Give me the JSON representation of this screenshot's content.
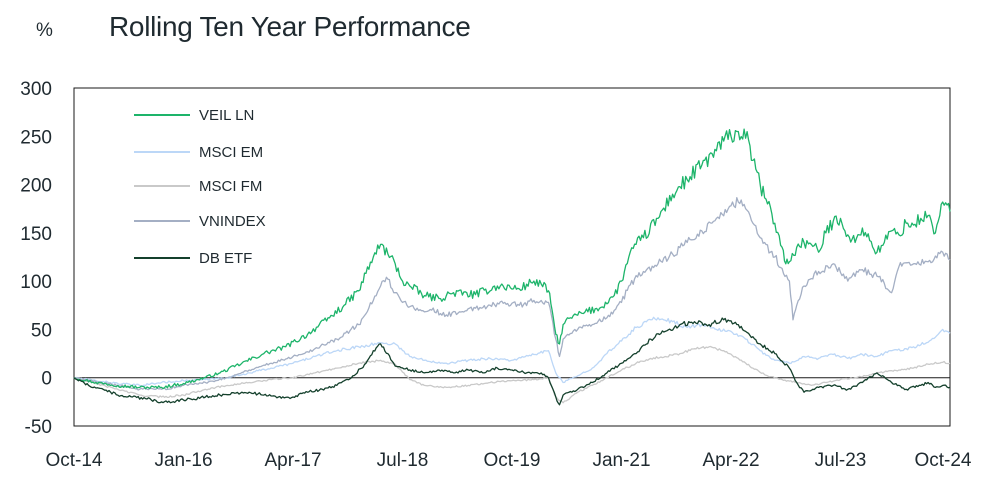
{
  "chart_data": {
    "type": "line",
    "title": "Rolling Ten Year Performance",
    "ylabel": "%",
    "xlabel": "",
    "ylim": [
      -50,
      300
    ],
    "yticks": [
      300,
      250,
      200,
      150,
      100,
      50,
      0,
      -50
    ],
    "xlim": [
      0,
      120
    ],
    "xtick_labels": [
      "Oct-14",
      "Jan-16",
      "Apr-17",
      "Jul-18",
      "Oct-19",
      "Jan-21",
      "Apr-22",
      "Jul-23",
      "Oct-24"
    ],
    "xtick_positions": [
      0,
      15,
      30,
      45,
      60,
      75,
      90,
      105,
      120
    ],
    "x_unit": "months since Oct-14",
    "legend_position": "top-left",
    "series": [
      {
        "name": "VEIL LN",
        "color": "#1db46a",
        "points": [
          [
            0,
            0
          ],
          [
            3,
            -5
          ],
          [
            6,
            -8
          ],
          [
            9,
            -10
          ],
          [
            12,
            -10
          ],
          [
            15,
            -6
          ],
          [
            17,
            -2
          ],
          [
            20,
            5
          ],
          [
            23,
            15
          ],
          [
            26,
            25
          ],
          [
            29,
            32
          ],
          [
            32,
            45
          ],
          [
            35,
            62
          ],
          [
            37,
            75
          ],
          [
            39,
            90
          ],
          [
            40,
            108
          ],
          [
            41,
            125
          ],
          [
            42,
            138
          ],
          [
            43,
            128
          ],
          [
            44,
            118
          ],
          [
            45,
            100
          ],
          [
            46,
            95
          ],
          [
            48,
            85
          ],
          [
            50,
            82
          ],
          [
            52,
            88
          ],
          [
            55,
            86
          ],
          [
            58,
            95
          ],
          [
            61,
            92
          ],
          [
            63,
            100
          ],
          [
            64,
            97
          ],
          [
            65,
            90
          ],
          [
            65.5,
            70
          ],
          [
            66,
            45
          ],
          [
            66.5,
            35
          ],
          [
            67,
            55
          ],
          [
            68,
            62
          ],
          [
            70,
            68
          ],
          [
            72,
            72
          ],
          [
            74,
            85
          ],
          [
            75,
            100
          ],
          [
            76,
            125
          ],
          [
            77,
            138
          ],
          [
            78,
            145
          ],
          [
            80,
            165
          ],
          [
            82,
            190
          ],
          [
            84,
            205
          ],
          [
            86,
            220
          ],
          [
            88,
            235
          ],
          [
            89,
            245
          ],
          [
            90,
            250
          ],
          [
            91,
            255
          ],
          [
            92,
            248
          ],
          [
            92.6,
            240
          ],
          [
            93,
            225
          ],
          [
            94,
            200
          ],
          [
            95,
            180
          ],
          [
            96,
            160
          ],
          [
            97,
            135
          ],
          [
            97.5,
            118
          ],
          [
            98,
            120
          ],
          [
            99,
            135
          ],
          [
            100,
            140
          ],
          [
            101,
            138
          ],
          [
            102,
            130
          ],
          [
            103,
            150
          ],
          [
            104,
            162
          ],
          [
            105,
            165
          ],
          [
            106,
            148
          ],
          [
            107,
            140
          ],
          [
            108,
            155
          ],
          [
            109,
            142
          ],
          [
            110,
            130
          ],
          [
            111,
            140
          ],
          [
            112,
            152
          ],
          [
            113,
            148
          ],
          [
            114,
            160
          ],
          [
            115,
            158
          ],
          [
            116,
            165
          ],
          [
            117,
            168
          ],
          [
            118,
            150
          ],
          [
            119,
            182
          ],
          [
            120,
            172
          ]
        ]
      },
      {
        "name": "MSCI EM",
        "color": "#bcd7f7",
        "points": [
          [
            0,
            0
          ],
          [
            3,
            -3
          ],
          [
            6,
            -6
          ],
          [
            9,
            -8
          ],
          [
            12,
            -5
          ],
          [
            15,
            -3
          ],
          [
            18,
            -2
          ],
          [
            21,
            0
          ],
          [
            24,
            5
          ],
          [
            27,
            10
          ],
          [
            30,
            15
          ],
          [
            33,
            22
          ],
          [
            36,
            28
          ],
          [
            39,
            32
          ],
          [
            42,
            36
          ],
          [
            44,
            35
          ],
          [
            46,
            22
          ],
          [
            48,
            18
          ],
          [
            51,
            15
          ],
          [
            54,
            18
          ],
          [
            57,
            20
          ],
          [
            60,
            18
          ],
          [
            63,
            24
          ],
          [
            65,
            28
          ],
          [
            66,
            5
          ],
          [
            67,
            -5
          ],
          [
            69,
            2
          ],
          [
            71,
            10
          ],
          [
            73,
            25
          ],
          [
            75,
            38
          ],
          [
            77,
            52
          ],
          [
            79,
            60
          ],
          [
            80,
            62
          ],
          [
            82,
            58
          ],
          [
            84,
            52
          ],
          [
            86,
            55
          ],
          [
            88,
            50
          ],
          [
            90,
            48
          ],
          [
            92,
            40
          ],
          [
            94,
            28
          ],
          [
            96,
            18
          ],
          [
            98,
            15
          ],
          [
            100,
            22
          ],
          [
            102,
            20
          ],
          [
            104,
            24
          ],
          [
            106,
            20
          ],
          [
            108,
            24
          ],
          [
            110,
            22
          ],
          [
            112,
            28
          ],
          [
            114,
            30
          ],
          [
            116,
            34
          ],
          [
            118,
            42
          ],
          [
            119,
            50
          ],
          [
            120,
            46
          ]
        ]
      },
      {
        "name": "MSCI FM",
        "color": "#c9c9c9",
        "points": [
          [
            0,
            0
          ],
          [
            3,
            -6
          ],
          [
            6,
            -12
          ],
          [
            9,
            -18
          ],
          [
            12,
            -20
          ],
          [
            15,
            -18
          ],
          [
            18,
            -12
          ],
          [
            21,
            -8
          ],
          [
            24,
            -5
          ],
          [
            27,
            -2
          ],
          [
            30,
            0
          ],
          [
            33,
            5
          ],
          [
            36,
            10
          ],
          [
            39,
            15
          ],
          [
            42,
            18
          ],
          [
            44,
            14
          ],
          [
            46,
            -2
          ],
          [
            48,
            -8
          ],
          [
            51,
            -10
          ],
          [
            54,
            -8
          ],
          [
            57,
            -5
          ],
          [
            60,
            -3
          ],
          [
            63,
            -2
          ],
          [
            65,
            0
          ],
          [
            66,
            -20
          ],
          [
            67,
            -26
          ],
          [
            69,
            -15
          ],
          [
            71,
            -8
          ],
          [
            73,
            0
          ],
          [
            75,
            8
          ],
          [
            77,
            15
          ],
          [
            79,
            20
          ],
          [
            81,
            22
          ],
          [
            83,
            25
          ],
          [
            85,
            30
          ],
          [
            87,
            32
          ],
          [
            89,
            28
          ],
          [
            91,
            20
          ],
          [
            93,
            10
          ],
          [
            95,
            2
          ],
          [
            97,
            -2
          ],
          [
            99,
            -5
          ],
          [
            101,
            -8
          ],
          [
            103,
            -5
          ],
          [
            105,
            -2
          ],
          [
            107,
            0
          ],
          [
            109,
            3
          ],
          [
            111,
            6
          ],
          [
            113,
            8
          ],
          [
            115,
            10
          ],
          [
            117,
            14
          ],
          [
            119,
            16
          ],
          [
            120,
            15
          ]
        ]
      },
      {
        "name": "VNINDEX",
        "color": "#a4afc4",
        "points": [
          [
            0,
            0
          ],
          [
            3,
            -4
          ],
          [
            6,
            -8
          ],
          [
            9,
            -12
          ],
          [
            12,
            -12
          ],
          [
            15,
            -8
          ],
          [
            18,
            -5
          ],
          [
            21,
            0
          ],
          [
            24,
            8
          ],
          [
            27,
            15
          ],
          [
            30,
            22
          ],
          [
            33,
            30
          ],
          [
            36,
            40
          ],
          [
            39,
            55
          ],
          [
            41,
            80
          ],
          [
            42,
            95
          ],
          [
            43,
            102
          ],
          [
            44,
            88
          ],
          [
            45,
            78
          ],
          [
            47,
            72
          ],
          [
            49,
            70
          ],
          [
            51,
            65
          ],
          [
            53,
            68
          ],
          [
            55,
            72
          ],
          [
            57,
            75
          ],
          [
            59,
            78
          ],
          [
            61,
            75
          ],
          [
            63,
            80
          ],
          [
            65,
            78
          ],
          [
            66,
            40
          ],
          [
            66.5,
            22
          ],
          [
            67,
            40
          ],
          [
            69,
            50
          ],
          [
            71,
            55
          ],
          [
            73,
            62
          ],
          [
            75,
            78
          ],
          [
            76,
            95
          ],
          [
            78,
            110
          ],
          [
            80,
            118
          ],
          [
            82,
            128
          ],
          [
            84,
            140
          ],
          [
            86,
            152
          ],
          [
            88,
            165
          ],
          [
            90,
            178
          ],
          [
            91,
            182
          ],
          [
            92,
            175
          ],
          [
            93,
            160
          ],
          [
            94,
            145
          ],
          [
            96,
            125
          ],
          [
            98,
            100
          ],
          [
            98.5,
            60
          ],
          [
            99,
            75
          ],
          [
            100,
            95
          ],
          [
            102,
            110
          ],
          [
            104,
            118
          ],
          [
            106,
            100
          ],
          [
            108,
            112
          ],
          [
            110,
            105
          ],
          [
            112,
            88
          ],
          [
            113,
            115
          ],
          [
            115,
            118
          ],
          [
            117,
            120
          ],
          [
            119,
            130
          ],
          [
            120,
            122
          ]
        ]
      },
      {
        "name": "DB ETF",
        "color": "#14402c",
        "points": [
          [
            0,
            0
          ],
          [
            2,
            -8
          ],
          [
            4,
            -12
          ],
          [
            6,
            -18
          ],
          [
            8,
            -20
          ],
          [
            10,
            -22
          ],
          [
            12,
            -25
          ],
          [
            14,
            -24
          ],
          [
            16,
            -22
          ],
          [
            18,
            -20
          ],
          [
            20,
            -18
          ],
          [
            22,
            -16
          ],
          [
            24,
            -15
          ],
          [
            26,
            -18
          ],
          [
            28,
            -20
          ],
          [
            30,
            -20
          ],
          [
            32,
            -15
          ],
          [
            34,
            -12
          ],
          [
            36,
            -8
          ],
          [
            38,
            0
          ],
          [
            40,
            15
          ],
          [
            41,
            28
          ],
          [
            42,
            35
          ],
          [
            43,
            25
          ],
          [
            44,
            12
          ],
          [
            46,
            8
          ],
          [
            48,
            5
          ],
          [
            50,
            8
          ],
          [
            52,
            5
          ],
          [
            54,
            8
          ],
          [
            56,
            5
          ],
          [
            58,
            10
          ],
          [
            60,
            8
          ],
          [
            62,
            5
          ],
          [
            64,
            5
          ],
          [
            65,
            0
          ],
          [
            66,
            -20
          ],
          [
            66.5,
            -28
          ],
          [
            67,
            -18
          ],
          [
            69,
            -12
          ],
          [
            71,
            -5
          ],
          [
            73,
            5
          ],
          [
            75,
            15
          ],
          [
            77,
            25
          ],
          [
            79,
            40
          ],
          [
            81,
            48
          ],
          [
            83,
            55
          ],
          [
            85,
            58
          ],
          [
            87,
            55
          ],
          [
            89,
            60
          ],
          [
            91,
            55
          ],
          [
            92,
            48
          ],
          [
            94,
            35
          ],
          [
            96,
            25
          ],
          [
            98,
            10
          ],
          [
            99,
            -5
          ],
          [
            100,
            -15
          ],
          [
            102,
            -10
          ],
          [
            104,
            -8
          ],
          [
            106,
            -12
          ],
          [
            108,
            -5
          ],
          [
            110,
            5
          ],
          [
            112,
            -5
          ],
          [
            114,
            -12
          ],
          [
            116,
            -8
          ],
          [
            117,
            -5
          ],
          [
            118,
            -10
          ],
          [
            119,
            -8
          ],
          [
            120,
            -10
          ]
        ]
      }
    ]
  }
}
